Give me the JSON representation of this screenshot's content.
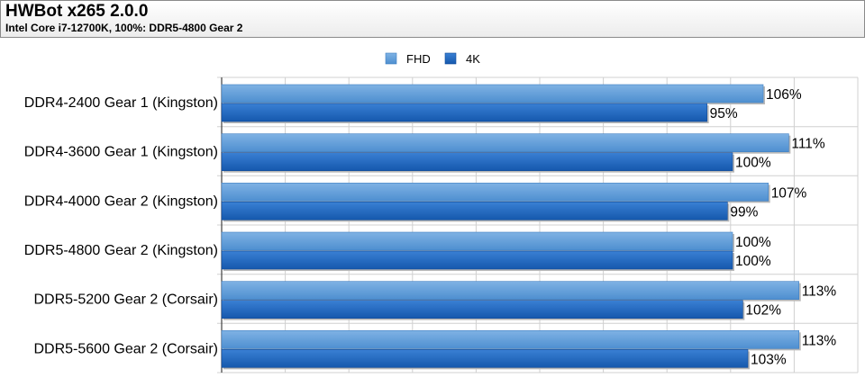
{
  "header": {
    "title": "HWBot x265 2.0.0",
    "subtitle": "Intel Core i7-12700K, 100%: DDR5-4800 Gear 2"
  },
  "chart_data": {
    "type": "bar",
    "orientation": "horizontal",
    "title": "HWBot x265 2.0.0",
    "subtitle": "Intel Core i7-12700K, 100%: DDR5-4800 Gear 2",
    "categories": [
      "DDR4-2400 Gear 1 (Kingston)",
      "DDR4-3600 Gear 1 (Kingston)",
      "DDR4-4000 Gear 2 (Kingston)",
      "DDR5-4800 Gear 2 (Kingston)",
      "DDR5-5200 Gear 2 (Corsair)",
      "DDR5-5600 Gear 2 (Corsair)"
    ],
    "series": [
      {
        "name": "FHD",
        "values": [
          106,
          111,
          107,
          100,
          113,
          113
        ],
        "color": "#5b9bd5"
      },
      {
        "name": "4K",
        "values": [
          95,
          100,
          99,
          100,
          102,
          103
        ],
        "color": "#1f66bf"
      }
    ],
    "value_suffix": "%",
    "xlim": [
      0,
      120
    ],
    "grid": true,
    "legend_position": "top"
  }
}
